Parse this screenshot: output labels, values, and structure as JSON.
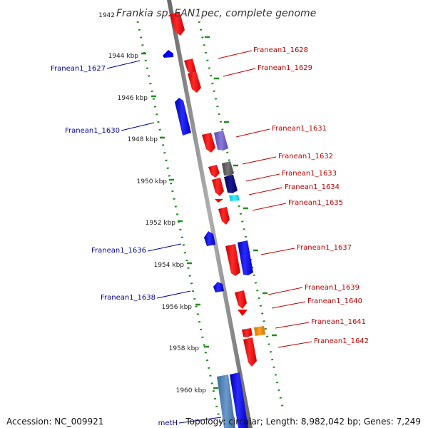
{
  "title": "Frankia sp. EAN1pec, complete genome",
  "ticks": [
    "1942",
    "1944 kbp",
    "1946 kbp",
    "1948 kbp",
    "1950 kbp",
    "1952 kbp",
    "1954 kbp",
    "1956 kbp",
    "1958 kbp",
    "1960 kbp"
  ],
  "genes_forward": [
    "Franean1_1628",
    "Franean1_1629",
    "Franean1_1631",
    "Franean1_1632",
    "Franean1_1633",
    "Franean1_1634",
    "Franean1_1635",
    "Franean1_1637",
    "Franean1_1639",
    "Franean1_1640",
    "Franean1_1641",
    "Franean1_1642"
  ],
  "genes_reverse": [
    "Franean1_1627",
    "Franean1_1630",
    "Franean1_1636",
    "Franean1_1638",
    "metH"
  ],
  "footer": {
    "accession": "Accession: NC_009921",
    "topology": "Topology: circular; Length: 8,982,042 bp; Genes: 7,249"
  },
  "colors": {
    "forward_gene": "#ee0000",
    "reverse_gene": "#0000ee",
    "backbone": "#888888",
    "gc_dots": "#228b22",
    "label_red": "#c00000",
    "label_blue": "#0000a0"
  }
}
